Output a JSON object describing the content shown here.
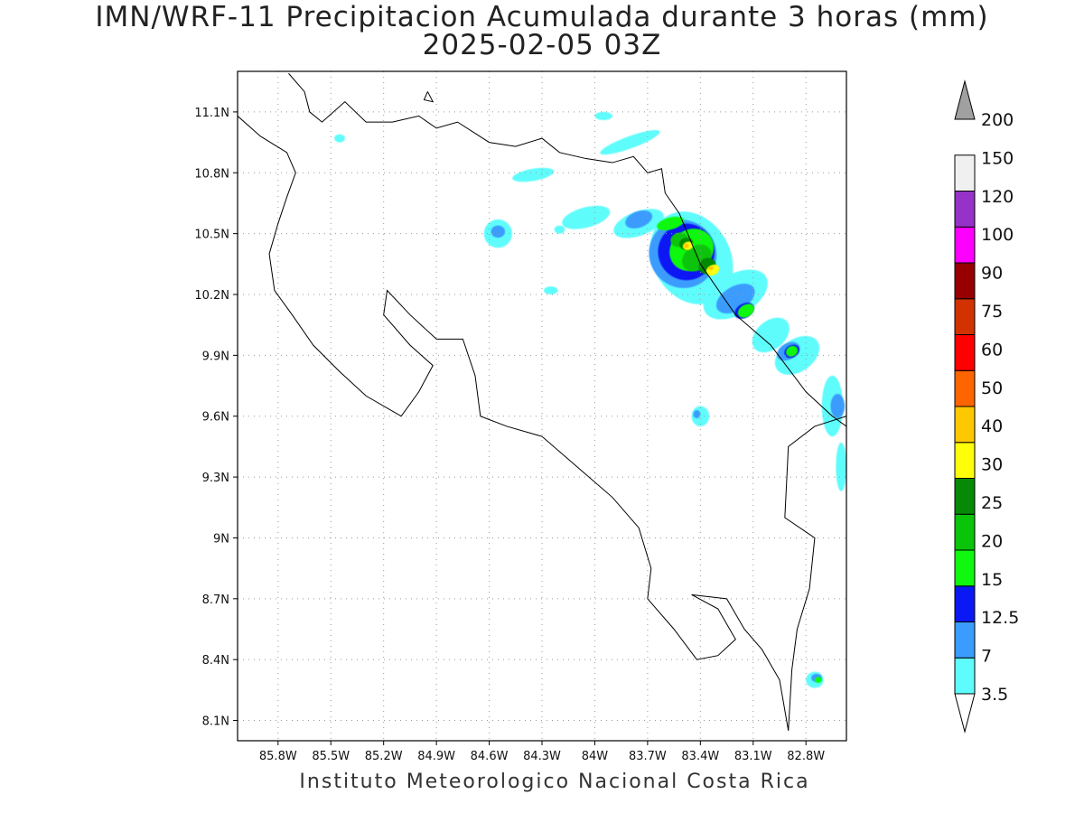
{
  "title": {
    "line1": "IMN/WRF-11 Precipitacion Acumulada durante 3 horas (mm)",
    "line2": "2025-02-05 03Z"
  },
  "footer": "Instituto Meteorologico Nacional Costa Rica",
  "map": {
    "lon_range": [
      -86.03,
      -82.57
    ],
    "lat_range": [
      8.0,
      11.3
    ],
    "lon_ticks": [
      {
        "value": -85.8,
        "label": "85.8W"
      },
      {
        "value": -85.5,
        "label": "85.5W"
      },
      {
        "value": -85.2,
        "label": "85.2W"
      },
      {
        "value": -84.9,
        "label": "84.9W"
      },
      {
        "value": -84.6,
        "label": "84.6W"
      },
      {
        "value": -84.3,
        "label": "84.3W"
      },
      {
        "value": -84.0,
        "label": "84W"
      },
      {
        "value": -83.7,
        "label": "83.7W"
      },
      {
        "value": -83.4,
        "label": "83.4W"
      },
      {
        "value": -83.1,
        "label": "83.1W"
      },
      {
        "value": -82.8,
        "label": "82.8W"
      }
    ],
    "lat_ticks": [
      {
        "value": 11.1,
        "label": "11.1N"
      },
      {
        "value": 10.8,
        "label": "10.8N"
      },
      {
        "value": 10.5,
        "label": "10.5N"
      },
      {
        "value": 10.2,
        "label": "10.2N"
      },
      {
        "value": 9.9,
        "label": "9.9N"
      },
      {
        "value": 9.6,
        "label": "9.6N"
      },
      {
        "value": 9.3,
        "label": "9.3N"
      },
      {
        "value": 9.0,
        "label": "9N"
      },
      {
        "value": 8.7,
        "label": "8.7N"
      },
      {
        "value": 8.4,
        "label": "8.4N"
      },
      {
        "value": 8.1,
        "label": "8.1N"
      }
    ],
    "grid": true
  },
  "colorbar": {
    "labels": [
      "3.5",
      "7",
      "12.5",
      "15",
      "20",
      "25",
      "30",
      "40",
      "50",
      "60",
      "75",
      "90",
      "100",
      "120",
      "150",
      "200"
    ],
    "colors": [
      "#ffffff",
      "#5efcfc",
      "#3a9cfe",
      "#0a19f4",
      "#10f810",
      "#0ac40a",
      "#068a06",
      "#fefe0a",
      "#fec800",
      "#fe6400",
      "#fe0000",
      "#d23200",
      "#960000",
      "#fe00fe",
      "#9632c8",
      "#f0f0f0"
    ],
    "overflow_color": "#a0a0a0"
  },
  "precip_fields": [
    {
      "color": "#5efcfc",
      "blobs": [
        [
          -83.45,
          10.38,
          0.22,
          0.24,
          -30
        ],
        [
          -83.2,
          10.2,
          0.2,
          0.1,
          -30
        ],
        [
          -83.0,
          10.0,
          0.12,
          0.07,
          -40
        ],
        [
          -82.85,
          9.9,
          0.14,
          0.08,
          -35
        ],
        [
          -82.65,
          9.65,
          0.06,
          0.15,
          0
        ],
        [
          -82.6,
          9.35,
          0.03,
          0.12,
          0
        ],
        [
          -83.75,
          10.55,
          0.15,
          0.06,
          -20
        ],
        [
          -84.05,
          10.58,
          0.14,
          0.05,
          -15
        ],
        [
          -84.55,
          10.5,
          0.08,
          0.07,
          0
        ],
        [
          -84.35,
          10.79,
          0.12,
          0.03,
          -10
        ],
        [
          -83.8,
          10.95,
          0.18,
          0.03,
          -20
        ],
        [
          -83.95,
          11.08,
          0.05,
          0.02,
          0
        ],
        [
          -85.45,
          10.97,
          0.03,
          0.02,
          0
        ],
        [
          -83.4,
          9.6,
          0.05,
          0.05,
          0
        ],
        [
          -82.75,
          8.3,
          0.05,
          0.04,
          0
        ],
        [
          -84.2,
          10.52,
          0.03,
          0.02,
          0
        ],
        [
          -84.25,
          10.22,
          0.04,
          0.02,
          0
        ]
      ]
    },
    {
      "color": "#3a9cfe",
      "blobs": [
        [
          -83.5,
          10.4,
          0.19,
          0.17,
          -35
        ],
        [
          -83.2,
          10.18,
          0.12,
          0.06,
          -30
        ],
        [
          -82.9,
          9.92,
          0.07,
          0.04,
          -30
        ],
        [
          -82.62,
          9.65,
          0.04,
          0.06,
          0
        ],
        [
          -83.75,
          10.57,
          0.08,
          0.04,
          -20
        ],
        [
          -84.55,
          10.51,
          0.04,
          0.03,
          0
        ],
        [
          -83.42,
          9.61,
          0.02,
          0.02,
          0
        ],
        [
          -82.74,
          8.31,
          0.03,
          0.02,
          0
        ]
      ]
    },
    {
      "color": "#0a19f4",
      "blobs": [
        [
          -83.48,
          10.41,
          0.16,
          0.14,
          -35
        ],
        [
          -83.15,
          10.12,
          0.06,
          0.035,
          -30
        ],
        [
          -82.88,
          9.92,
          0.045,
          0.03,
          -30
        ]
      ]
    },
    {
      "color": "#10f810",
      "blobs": [
        [
          -83.45,
          10.42,
          0.13,
          0.1,
          -35
        ],
        [
          -83.57,
          10.55,
          0.08,
          0.03,
          -15
        ],
        [
          -83.14,
          10.12,
          0.05,
          0.03,
          -30
        ],
        [
          -82.88,
          9.92,
          0.035,
          0.025,
          -30
        ],
        [
          -82.73,
          8.3,
          0.02,
          0.015,
          0
        ]
      ]
    },
    {
      "color": "#0ac40a",
      "blobs": [
        [
          -83.42,
          10.38,
          0.09,
          0.06,
          -35
        ],
        [
          -83.52,
          10.47,
          0.05,
          0.035,
          -15
        ]
      ]
    },
    {
      "color": "#068a06",
      "blobs": [
        [
          -83.36,
          10.34,
          0.05,
          0.04,
          -30
        ],
        [
          -83.48,
          10.45,
          0.04,
          0.03,
          -15
        ]
      ]
    },
    {
      "color": "#fefe0a",
      "blobs": [
        [
          -83.33,
          10.32,
          0.04,
          0.025,
          -30
        ],
        [
          -83.47,
          10.44,
          0.03,
          0.02,
          -15
        ]
      ]
    },
    {
      "color": "#fec800",
      "blobs": [
        [
          -83.48,
          10.44,
          0.015,
          0.012,
          0
        ],
        [
          -83.34,
          10.33,
          0.015,
          0.01,
          0
        ]
      ]
    }
  ],
  "coastline": [
    [
      -85.74,
      11.29
    ],
    [
      -85.65,
      11.2
    ],
    [
      -85.62,
      11.1
    ],
    [
      -85.55,
      11.05
    ],
    [
      -85.42,
      11.15
    ],
    [
      -85.3,
      11.05
    ],
    [
      -85.15,
      11.05
    ],
    [
      -85.0,
      11.08
    ],
    [
      -84.9,
      11.02
    ],
    [
      -84.78,
      11.05
    ],
    [
      -84.6,
      10.95
    ],
    [
      -84.45,
      10.93
    ],
    [
      -84.3,
      10.97
    ],
    [
      -84.2,
      10.9
    ],
    [
      -84.05,
      10.87
    ],
    [
      -83.9,
      10.85
    ],
    [
      -83.78,
      10.88
    ],
    [
      -83.7,
      10.8
    ],
    [
      -83.62,
      10.82
    ],
    [
      -83.6,
      10.7
    ],
    [
      -83.52,
      10.6
    ],
    [
      -83.4,
      10.35
    ],
    [
      -83.2,
      10.1
    ],
    [
      -83.0,
      9.95
    ],
    [
      -82.8,
      9.72
    ],
    [
      -82.65,
      9.6
    ],
    [
      -82.57,
      9.55
    ]
  ],
  "pacific_coast": [
    [
      -86.03,
      11.08
    ],
    [
      -85.9,
      10.98
    ],
    [
      -85.75,
      10.9
    ],
    [
      -85.7,
      10.8
    ],
    [
      -85.75,
      10.68
    ],
    [
      -85.8,
      10.55
    ],
    [
      -85.85,
      10.4
    ],
    [
      -85.82,
      10.22
    ],
    [
      -85.72,
      10.1
    ],
    [
      -85.6,
      9.95
    ],
    [
      -85.45,
      9.82
    ],
    [
      -85.3,
      9.7
    ],
    [
      -85.1,
      9.6
    ],
    [
      -85.0,
      9.72
    ],
    [
      -84.92,
      9.85
    ],
    [
      -85.05,
      9.95
    ],
    [
      -85.2,
      10.1
    ],
    [
      -85.18,
      10.22
    ],
    [
      -85.05,
      10.1
    ],
    [
      -84.9,
      9.98
    ],
    [
      -84.75,
      9.98
    ],
    [
      -84.68,
      9.8
    ],
    [
      -84.65,
      9.6
    ],
    [
      -84.5,
      9.55
    ],
    [
      -84.3,
      9.5
    ],
    [
      -84.1,
      9.35
    ],
    [
      -83.9,
      9.2
    ],
    [
      -83.75,
      9.05
    ],
    [
      -83.68,
      8.85
    ],
    [
      -83.7,
      8.7
    ],
    [
      -83.55,
      8.55
    ],
    [
      -83.42,
      8.4
    ],
    [
      -83.3,
      8.42
    ],
    [
      -83.2,
      8.5
    ],
    [
      -83.3,
      8.65
    ],
    [
      -83.45,
      8.72
    ],
    [
      -83.25,
      8.7
    ],
    [
      -83.15,
      8.55
    ],
    [
      -83.05,
      8.45
    ],
    [
      -82.95,
      8.3
    ],
    [
      -82.9,
      8.05
    ]
  ],
  "border_south": [
    [
      -82.57,
      9.6
    ],
    [
      -82.75,
      9.55
    ],
    [
      -82.9,
      9.45
    ],
    [
      -82.92,
      9.1
    ],
    [
      -82.75,
      9.0
    ],
    [
      -82.78,
      8.75
    ],
    [
      -82.85,
      8.55
    ],
    [
      -82.88,
      8.35
    ],
    [
      -82.9,
      8.05
    ]
  ],
  "island": [
    [
      -84.95,
      11.2
    ],
    [
      -84.92,
      11.15
    ],
    [
      -84.97,
      11.16
    ],
    [
      -84.95,
      11.2
    ]
  ]
}
